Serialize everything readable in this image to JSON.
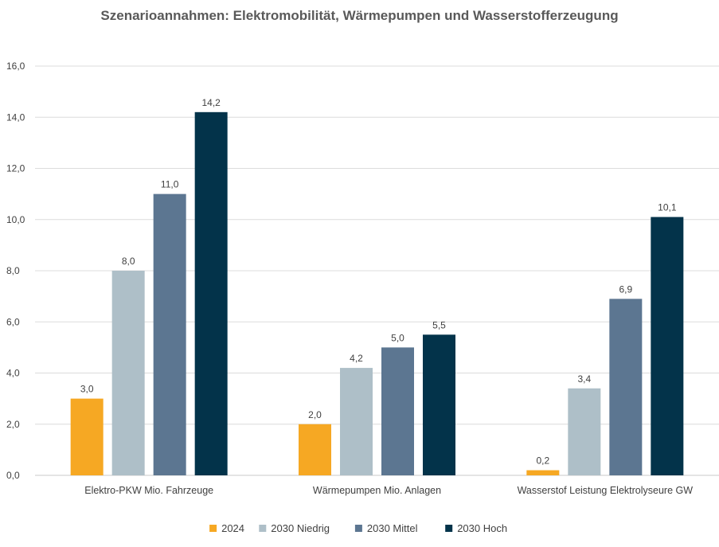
{
  "chart_data": {
    "type": "bar",
    "title": "Szenarioannahmen: Elektromobilität, Wärmepumpen und Wasserstofferzeugung",
    "categories": [
      "Elektro-PKW Mio. Fahrzeuge",
      "Wärmepumpen Mio. Anlagen",
      "Wasserstof Leistung Elektrolyseure GW"
    ],
    "series": [
      {
        "name": "2024",
        "color": "#F6A823",
        "values": [
          3.0,
          2.0,
          0.2
        ],
        "labels": [
          "3,0",
          "2,0",
          "0,2"
        ]
      },
      {
        "name": "2030 Niedrig",
        "color": "#AEBFC8",
        "values": [
          8.0,
          4.2,
          3.4
        ],
        "labels": [
          "8,0",
          "4,2",
          "3,4"
        ]
      },
      {
        "name": "2030 Mittel",
        "color": "#5C7691",
        "values": [
          11.0,
          5.0,
          6.9
        ],
        "labels": [
          "11,0",
          "5,0",
          "6,9"
        ]
      },
      {
        "name": "2030 Hoch",
        "color": "#03334A",
        "values": [
          14.2,
          5.5,
          10.1
        ],
        "labels": [
          "14,2",
          "5,5",
          "10,1"
        ]
      }
    ],
    "yticks": [
      0,
      2,
      4,
      6,
      8,
      10,
      12,
      14,
      16
    ],
    "ytick_labels": [
      "0,0",
      "2,0",
      "4,0",
      "6,0",
      "8,0",
      "10,0",
      "12,0",
      "14,0",
      "16,0"
    ],
    "ylim": [
      0,
      16
    ],
    "grid": true,
    "legend": "bottom",
    "xlabel": "",
    "ylabel": ""
  }
}
